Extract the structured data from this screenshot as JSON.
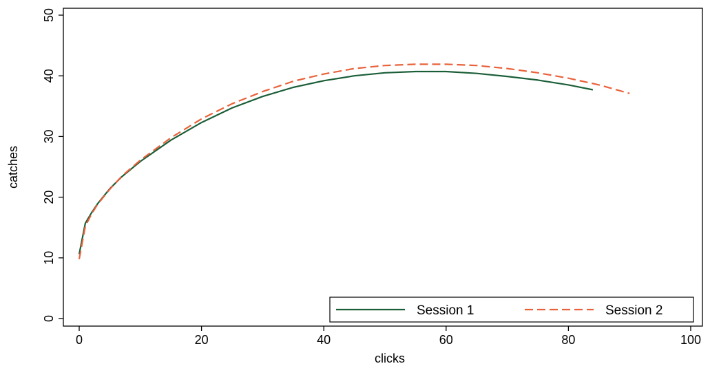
{
  "chart_data": {
    "type": "line",
    "xlabel": "clicks",
    "ylabel": "catches",
    "xlim": [
      0,
      100
    ],
    "ylim": [
      0,
      50
    ],
    "xticks": [
      0,
      20,
      40,
      60,
      80,
      100
    ],
    "yticks": [
      0,
      10,
      20,
      30,
      40,
      50
    ],
    "grid": false,
    "legend_position": "bottom-right",
    "series": [
      {
        "name": "Session 1",
        "color": "#1a5e38",
        "style": "solid",
        "x": [
          0,
          1,
          2,
          3,
          5,
          7,
          10,
          15,
          20,
          25,
          30,
          35,
          40,
          45,
          50,
          55,
          57,
          60,
          65,
          70,
          75,
          80,
          84
        ],
        "y": [
          10.6,
          15.7,
          17.4,
          18.9,
          21.4,
          23.4,
          25.9,
          29.4,
          32.3,
          34.7,
          36.6,
          38.1,
          39.2,
          40.0,
          40.5,
          40.7,
          40.7,
          40.7,
          40.4,
          39.9,
          39.3,
          38.5,
          37.7
        ]
      },
      {
        "name": "Session 2",
        "color": "#e8613a",
        "style": "dashed",
        "x": [
          0,
          1,
          2,
          3,
          5,
          7,
          10,
          15,
          20,
          25,
          30,
          35,
          40,
          45,
          50,
          55,
          58,
          60,
          65,
          70,
          75,
          80,
          85,
          90
        ],
        "y": [
          9.8,
          15.2,
          17.2,
          18.8,
          21.3,
          23.5,
          26.1,
          29.8,
          32.9,
          35.4,
          37.4,
          39.1,
          40.3,
          41.2,
          41.7,
          41.9,
          41.9,
          41.9,
          41.7,
          41.2,
          40.5,
          39.6,
          38.5,
          37.1
        ]
      }
    ]
  }
}
